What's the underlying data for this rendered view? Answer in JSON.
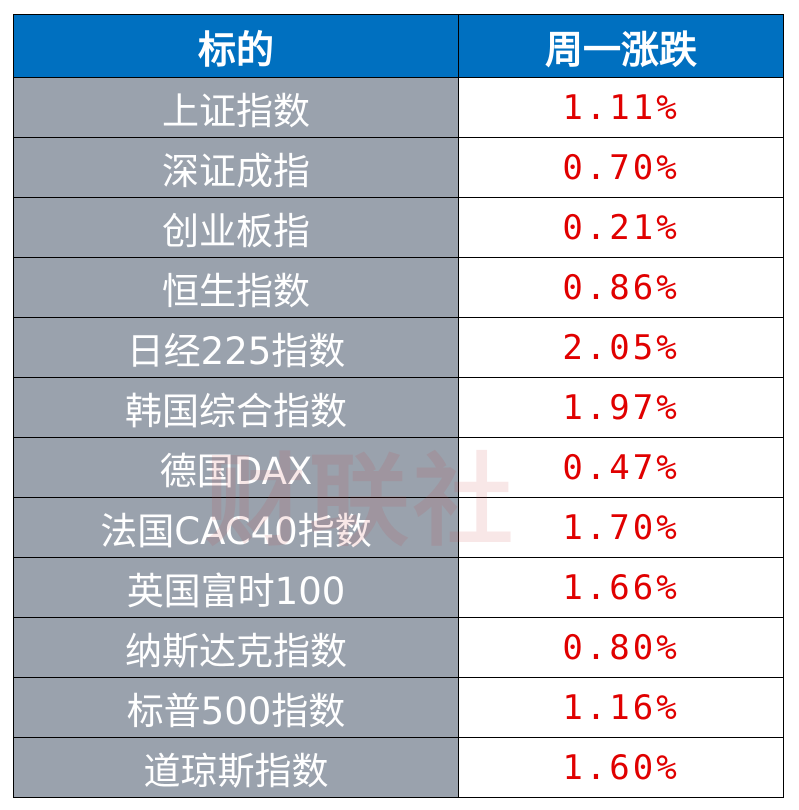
{
  "header": {
    "columns": [
      "标的",
      "周一涨跌"
    ]
  },
  "table": {
    "rows": [
      [
        "上证指数",
        "1.11%"
      ],
      [
        "深证成指",
        "0.70%"
      ],
      [
        "创业板指",
        "0.21%"
      ],
      [
        "恒生指数",
        "0.86%"
      ],
      [
        "日经225指数",
        "2.05%"
      ],
      [
        "韩国综合指数",
        "1.97%"
      ],
      [
        "德国DAX",
        "0.47%"
      ],
      [
        "法国CAC40指数",
        "1.70%"
      ],
      [
        "英国富时100",
        "1.66%"
      ],
      [
        "纳斯达克指数",
        "0.80%"
      ],
      [
        "标普500指数",
        "1.16%"
      ],
      [
        "道琼斯指数",
        "1.60%"
      ]
    ]
  },
  "watermark": "财联社"
}
